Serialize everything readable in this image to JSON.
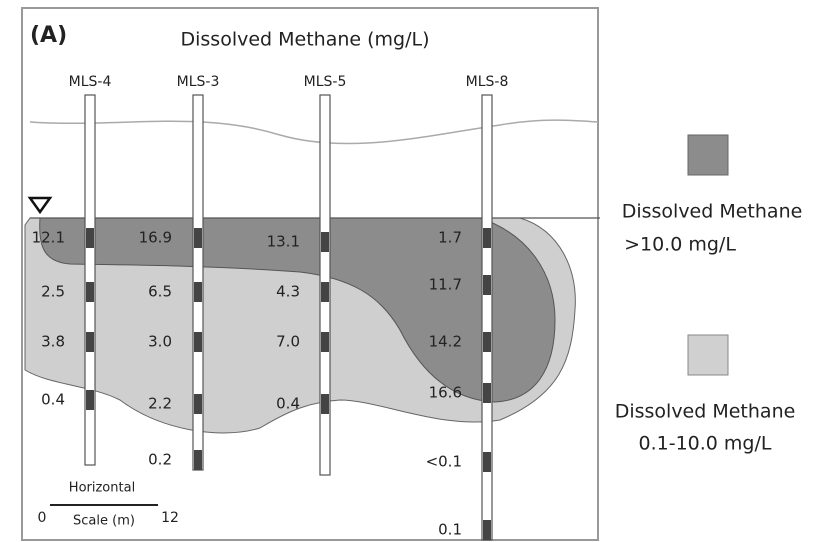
{
  "panel_label": "(A)",
  "title": "Dissolved Methane (mg/L)",
  "wells": [
    {
      "name": "MLS-4",
      "readings": [
        "12.1",
        "2.5",
        "3.8",
        "0.4"
      ]
    },
    {
      "name": "MLS-3",
      "readings": [
        "16.9",
        "6.5",
        "3.0",
        "2.2",
        "0.2"
      ]
    },
    {
      "name": "MLS-5",
      "readings": [
        "13.1",
        "4.3",
        "7.0",
        "0.4"
      ]
    },
    {
      "name": "MLS-8",
      "readings": [
        "1.7",
        "11.7",
        "14.2",
        "16.6",
        "<0.1",
        "0.1"
      ]
    }
  ],
  "legend": [
    {
      "line1": "Dissolved Methane",
      "line2": ">10.0 mg/L"
    },
    {
      "line1": "Dissolved Methane",
      "line2": "0.1-10.0 mg/L"
    }
  ],
  "scale_bar": {
    "title": "Horizontal",
    "start": "0",
    "label": "Scale (m)",
    "end": "12"
  }
}
